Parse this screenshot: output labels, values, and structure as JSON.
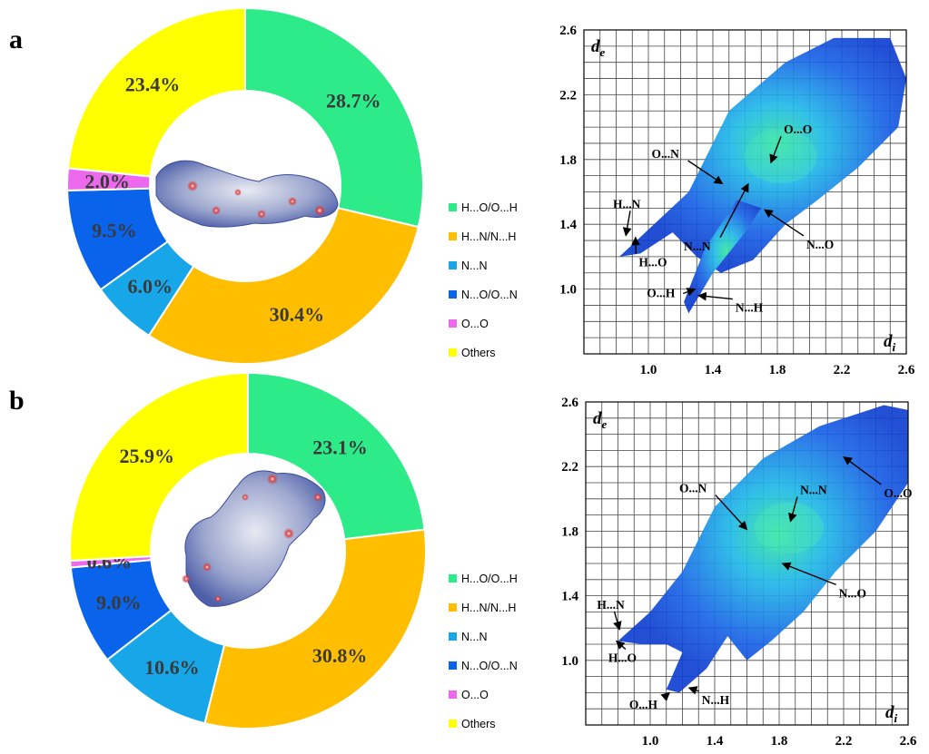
{
  "panels": [
    {
      "label": "a",
      "donut": {
        "title": "",
        "slices": [
          {
            "name": "H...O/O...H",
            "value": 28.7,
            "label": "28.7%",
            "color": "#2EEB8A"
          },
          {
            "name": "H...N/N...H",
            "value": 30.4,
            "label": "30.4%",
            "color": "#FFBF00"
          },
          {
            "name": "N...N",
            "value": 6.0,
            "label": "6.0%",
            "color": "#17A7E8"
          },
          {
            "name": "N...O/O...N",
            "value": 9.5,
            "label": "9.5%",
            "color": "#0A63EB"
          },
          {
            "name": "O...O",
            "value": 2.0,
            "label": "2.0%",
            "color": "#EC68EC"
          },
          {
            "name": "Others",
            "value": 23.4,
            "label": "23.4%",
            "color": "#FFFF00"
          }
        ]
      },
      "legend": [
        "H...O/O...H",
        "H...N/N...H",
        "N...N",
        "N...O/O...N",
        "O...O",
        "Others"
      ],
      "fingerprint": {
        "x_label": "d",
        "x_sub": "i",
        "y_label": "d",
        "y_sub": "e",
        "x_ticks": [
          "1.0",
          "1.4",
          "1.8",
          "2.2",
          "2.6"
        ],
        "y_ticks": [
          "1.0",
          "1.4",
          "1.8",
          "2.2",
          "2.6"
        ],
        "range": [
          0.6,
          2.6
        ],
        "annotations": [
          {
            "text": "O...O",
            "tx": 1.84,
            "ty": 1.96,
            "ax": 1.76,
            "ay": 1.78
          },
          {
            "text": "O...N",
            "tx": 1.02,
            "ty": 1.81,
            "ax": 1.46,
            "ay": 1.65
          },
          {
            "text": "H...N",
            "tx": 0.78,
            "ty": 1.5,
            "ax": 0.86,
            "ay": 1.33
          },
          {
            "text": "N...N",
            "tx": 1.22,
            "ty": 1.24,
            "ax": 1.62,
            "ay": 1.65
          },
          {
            "text": "N...O",
            "tx": 1.98,
            "ty": 1.25,
            "ax": 1.72,
            "ay": 1.49
          },
          {
            "text": "H...O",
            "tx": 0.94,
            "ty": 1.14,
            "ax": 0.92,
            "ay": 1.32
          },
          {
            "text": "O...H",
            "tx": 0.99,
            "ty": 0.95,
            "ax": 1.29,
            "ay": 1.0
          },
          {
            "text": "N...H",
            "tx": 1.54,
            "ty": 0.86,
            "ax": 1.31,
            "ay": 0.96
          }
        ]
      }
    },
    {
      "label": "b",
      "donut": {
        "title": "",
        "slices": [
          {
            "name": "H...O/O...H",
            "value": 23.1,
            "label": "23.1%",
            "color": "#2EEB8A"
          },
          {
            "name": "H...N/N...H",
            "value": 30.8,
            "label": "30.8%",
            "color": "#FFBF00"
          },
          {
            "name": "N...N",
            "value": 10.6,
            "label": "10.6%",
            "color": "#17A7E8"
          },
          {
            "name": "N...O/O...N",
            "value": 9.0,
            "label": "9.0%",
            "color": "#0A63EB"
          },
          {
            "name": "O...O",
            "value": 0.6,
            "label": "0.6%",
            "color": "#EC68EC"
          },
          {
            "name": "Others",
            "value": 25.9,
            "label": "25.9%",
            "color": "#FFFF00"
          }
        ]
      },
      "legend": [
        "H...O/O...H",
        "H...N/N...H",
        "N...N",
        "N...O/O...N",
        "O...O",
        "Others"
      ],
      "fingerprint": {
        "x_label": "d",
        "x_sub": "i",
        "y_label": "d",
        "y_sub": "e",
        "x_ticks": [
          "1.0",
          "1.4",
          "1.8",
          "2.2",
          "2.6"
        ],
        "y_ticks": [
          "1.0",
          "1.4",
          "1.8",
          "2.2",
          "2.6"
        ],
        "range": [
          0.6,
          2.6
        ],
        "annotations": [
          {
            "text": "O...N",
            "tx": 1.18,
            "ty": 2.04,
            "ax": 1.6,
            "ay": 1.81
          },
          {
            "text": "N...N",
            "tx": 1.93,
            "ty": 2.03,
            "ax": 1.87,
            "ay": 1.86
          },
          {
            "text": "O...O",
            "tx": 2.45,
            "ty": 2.01,
            "ax": 2.2,
            "ay": 2.26
          },
          {
            "text": "N...O",
            "tx": 2.17,
            "ty": 1.39,
            "ax": 1.82,
            "ay": 1.6
          },
          {
            "text": "H...N",
            "tx": 0.67,
            "ty": 1.32,
            "ax": 0.81,
            "ay": 1.19
          },
          {
            "text": "H...O",
            "tx": 0.74,
            "ty": 0.99,
            "ax": 0.79,
            "ay": 1.12
          },
          {
            "text": "O...H",
            "tx": 0.87,
            "ty": 0.7,
            "ax": 1.12,
            "ay": 0.8
          },
          {
            "text": "N...H",
            "tx": 1.32,
            "ty": 0.73,
            "ax": 1.24,
            "ay": 0.83
          }
        ]
      }
    }
  ],
  "chart_data": [
    {
      "type": "pie",
      "title": "a",
      "categories": [
        "H...O/O...H",
        "H...N/N...H",
        "N...N",
        "N...O/O...N",
        "O...O",
        "Others"
      ],
      "values": [
        28.7,
        30.4,
        6.0,
        9.5,
        2.0,
        23.4
      ]
    },
    {
      "type": "scatter",
      "title": "a",
      "xlabel": "di",
      "ylabel": "de",
      "xlim": [
        0.6,
        2.6
      ],
      "ylim": [
        0.6,
        2.6
      ]
    },
    {
      "type": "pie",
      "title": "b",
      "categories": [
        "H...O/O...H",
        "H...N/N...H",
        "N...N",
        "N...O/O...N",
        "O...O",
        "Others"
      ],
      "values": [
        23.1,
        30.8,
        10.6,
        9.0,
        0.6,
        25.9
      ]
    },
    {
      "type": "scatter",
      "title": "b",
      "xlabel": "di",
      "ylabel": "de",
      "xlim": [
        0.6,
        2.6
      ],
      "ylim": [
        0.6,
        2.6
      ]
    }
  ]
}
